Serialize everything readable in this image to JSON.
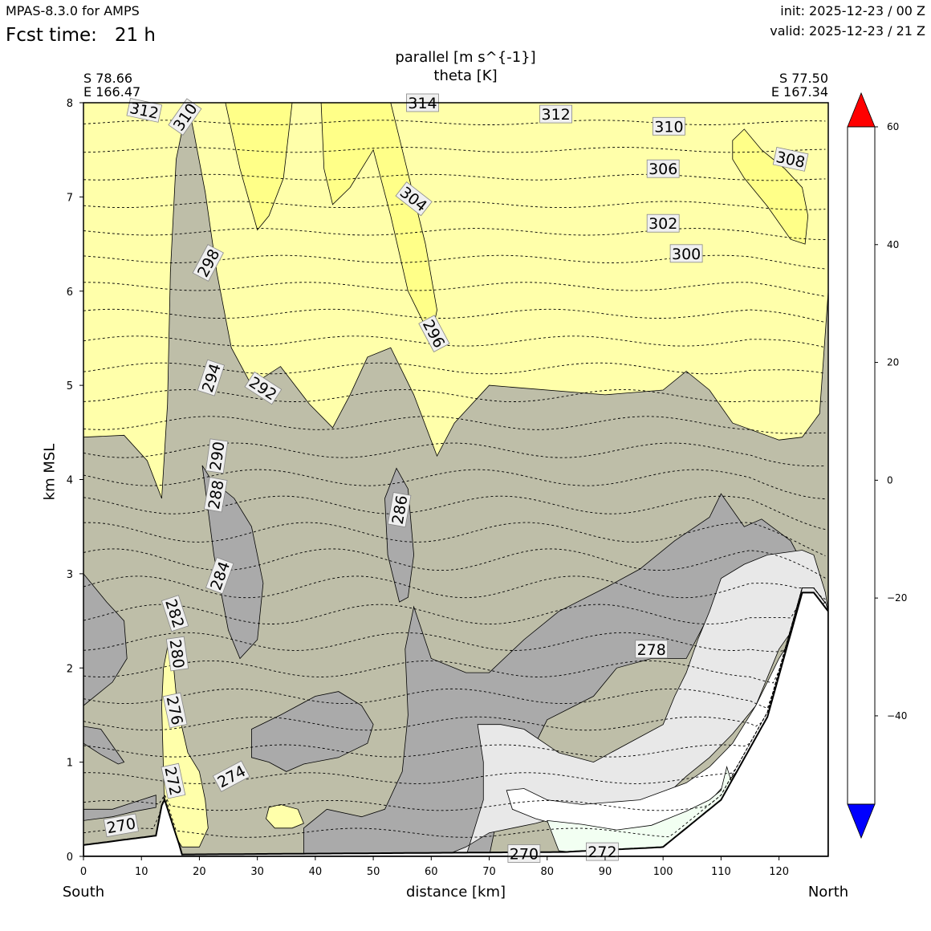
{
  "header": {
    "model": "MPAS-8.3.0 for AMPS",
    "fcst_label": "Fcst time:",
    "fcst_value": "21 h",
    "init": "init: 2025-12-23 / 00 Z",
    "valid": "valid: 2025-12-23 / 21 Z"
  },
  "chart_data": {
    "type": "contour",
    "title": "parallel [m s^{-1}]",
    "subtitle": "theta [K]",
    "xlabel": "distance [km]",
    "ylabel": "km MSL",
    "xlim": [
      0,
      128.5
    ],
    "ylim": [
      0,
      8
    ],
    "x_ticks": [
      0,
      10,
      20,
      30,
      40,
      50,
      60,
      70,
      80,
      90,
      100,
      110,
      120
    ],
    "y_ticks": [
      0,
      1,
      2,
      3,
      4,
      5,
      6,
      7,
      8
    ],
    "left_end": {
      "lat": "S 78.66",
      "lon": "E 166.47",
      "direction": "South"
    },
    "right_end": {
      "lat": "S 77.50",
      "lon": "E 167.34",
      "direction": "North"
    },
    "colorbar": {
      "levels": [
        -60,
        -50,
        -45,
        -40,
        -35,
        -30,
        -25,
        -20,
        -15,
        -10,
        -5,
        0,
        5,
        10,
        15,
        20,
        25,
        30,
        35,
        40,
        45,
        50,
        55,
        60
      ],
      "colors": [
        "#0000ff",
        "#0000ff",
        "#00cccc",
        "#00e066",
        "#22ff22",
        "#66ff66",
        "#aaffaa",
        "#ddffdd",
        "#f2fff2",
        "#ffffff",
        "#ffffff",
        "#ffffff",
        "#e8e8e8",
        "#aaaaaa",
        "#bebea8",
        "#ffffaa",
        "#ffff66",
        "#ffff22",
        "#ffee66",
        "#ff7070",
        "#ff0000",
        "#ff0000"
      ],
      "tick_values": [
        -40,
        -20,
        0,
        20,
        40,
        60
      ],
      "tick_labels": [
        "−40",
        "−20",
        "0",
        "20",
        "40",
        "60"
      ]
    },
    "theta_labels": [
      {
        "value": "312",
        "x": 10.5,
        "y": 7.92,
        "angle": 12
      },
      {
        "value": "310",
        "x": 17.5,
        "y": 7.85,
        "angle": -55
      },
      {
        "value": "314",
        "x": 58.5,
        "y": 8.0,
        "angle": 0
      },
      {
        "value": "312",
        "x": 81.5,
        "y": 7.88,
        "angle": 0
      },
      {
        "value": "310",
        "x": 101,
        "y": 7.75,
        "angle": 0
      },
      {
        "value": "308",
        "x": 122,
        "y": 7.4,
        "angle": 12
      },
      {
        "value": "306",
        "x": 100,
        "y": 7.3,
        "angle": 0
      },
      {
        "value": "304",
        "x": 57,
        "y": 6.98,
        "angle": 38
      },
      {
        "value": "302",
        "x": 100,
        "y": 6.72,
        "angle": 0
      },
      {
        "value": "300",
        "x": 104,
        "y": 6.4,
        "angle": 0
      },
      {
        "value": "298",
        "x": 21.5,
        "y": 6.3,
        "angle": -62
      },
      {
        "value": "296",
        "x": 60.5,
        "y": 5.55,
        "angle": 62
      },
      {
        "value": "294",
        "x": 22,
        "y": 5.08,
        "angle": -72
      },
      {
        "value": "292",
        "x": 31,
        "y": 4.97,
        "angle": 33
      },
      {
        "value": "290",
        "x": 23,
        "y": 4.25,
        "angle": -82
      },
      {
        "value": "288",
        "x": 22.8,
        "y": 3.84,
        "angle": -80
      },
      {
        "value": "286",
        "x": 54.5,
        "y": 3.68,
        "angle": -80
      },
      {
        "value": "284",
        "x": 23.5,
        "y": 2.98,
        "angle": -70
      },
      {
        "value": "282",
        "x": 15.8,
        "y": 2.58,
        "angle": 72
      },
      {
        "value": "280",
        "x": 16.2,
        "y": 2.15,
        "angle": 82
      },
      {
        "value": "278",
        "x": 98,
        "y": 2.2,
        "angle": 0
      },
      {
        "value": "276",
        "x": 15.8,
        "y": 1.55,
        "angle": 78
      },
      {
        "value": "274",
        "x": 25.5,
        "y": 0.85,
        "angle": -28
      },
      {
        "value": "272",
        "x": 15.5,
        "y": 0.8,
        "angle": 78
      },
      {
        "value": "270",
        "x": 6.5,
        "y": 0.33,
        "angle": -10
      },
      {
        "value": "270",
        "x": 76,
        "y": 0.03,
        "angle": 0
      },
      {
        "value": "272",
        "x": 89.5,
        "y": 0.05,
        "angle": 0
      }
    ],
    "regions": [
      {
        "color": "#ffffaa",
        "points": [
          [
            0,
            4.45
          ],
          [
            0,
            8
          ],
          [
            128.5,
            8
          ],
          [
            128.5,
            6.0
          ],
          [
            127,
            4.7
          ],
          [
            124,
            4.45
          ],
          [
            120,
            4.42
          ],
          [
            112,
            4.6
          ],
          [
            108,
            4.95
          ],
          [
            104,
            5.15
          ],
          [
            100,
            4.95
          ],
          [
            90,
            4.9
          ],
          [
            70,
            5.0
          ],
          [
            64,
            4.6
          ],
          [
            61,
            4.25
          ],
          [
            57,
            4.9
          ],
          [
            53,
            5.4
          ],
          [
            49,
            5.3
          ],
          [
            46,
            4.9
          ],
          [
            43,
            4.55
          ],
          [
            39,
            4.8
          ],
          [
            34,
            5.2
          ],
          [
            29,
            5.0
          ],
          [
            25.5,
            5.4
          ],
          [
            23,
            6.2
          ],
          [
            21,
            7.05
          ],
          [
            19,
            7.7
          ],
          [
            18,
            8
          ],
          [
            16,
            7.4
          ],
          [
            15,
            6.2
          ],
          [
            14.5,
            4.8
          ],
          [
            13.5,
            3.8
          ],
          [
            11,
            4.2
          ],
          [
            7,
            4.47
          ]
        ]
      },
      {
        "color": "#ffff88",
        "points": [
          [
            24.5,
            8
          ],
          [
            36,
            8
          ],
          [
            34.5,
            7.2
          ],
          [
            32,
            6.8
          ],
          [
            30,
            6.65
          ],
          [
            27,
            7.3
          ]
        ]
      },
      {
        "color": "#ffff88",
        "points": [
          [
            41,
            8
          ],
          [
            53,
            8
          ],
          [
            55,
            7.5
          ],
          [
            59,
            6.5
          ],
          [
            61,
            5.8
          ],
          [
            60,
            5.5
          ],
          [
            56,
            6.0
          ],
          [
            53,
            6.8
          ],
          [
            50,
            7.5
          ],
          [
            46,
            7.1
          ],
          [
            43,
            6.92
          ],
          [
            41.5,
            7.3
          ]
        ]
      },
      {
        "color": "#ffff88",
        "points": [
          [
            112,
            7.6
          ],
          [
            114,
            7.72
          ],
          [
            117,
            7.5
          ],
          [
            121,
            7.3
          ],
          [
            124,
            7.1
          ],
          [
            125,
            6.8
          ],
          [
            124.5,
            6.5
          ],
          [
            122,
            6.55
          ],
          [
            118,
            6.9
          ],
          [
            114,
            7.2
          ],
          [
            112,
            7.4
          ]
        ]
      },
      {
        "color": "#aaaaaa",
        "points": [
          [
            0,
            3.0
          ],
          [
            4,
            2.7
          ],
          [
            7,
            2.5
          ],
          [
            7.5,
            2.1
          ],
          [
            5,
            1.85
          ],
          [
            0,
            1.6
          ]
        ]
      },
      {
        "color": "#aaaaaa",
        "points": [
          [
            0,
            1.38
          ],
          [
            3,
            1.35
          ],
          [
            7,
            1.0
          ],
          [
            6,
            0.98
          ],
          [
            3,
            1.08
          ],
          [
            0,
            1.2
          ]
        ]
      },
      {
        "color": "#aaaaaa",
        "points": [
          [
            0,
            0.5
          ],
          [
            5,
            0.5
          ],
          [
            9,
            0.58
          ],
          [
            12.5,
            0.65
          ],
          [
            12.5,
            0.52
          ],
          [
            9,
            0.48
          ],
          [
            5,
            0.42
          ],
          [
            0,
            0.38
          ]
        ]
      },
      {
        "color": "#aaaaaa",
        "points": [
          [
            20.5,
            4.15
          ],
          [
            22.5,
            3.2
          ],
          [
            25,
            2.4
          ],
          [
            27,
            2.1
          ],
          [
            30,
            2.3
          ],
          [
            31,
            2.9
          ],
          [
            29,
            3.5
          ],
          [
            26,
            3.8
          ],
          [
            22,
            4.0
          ]
        ]
      },
      {
        "color": "#aaaaaa",
        "points": [
          [
            54,
            4.12
          ],
          [
            56,
            3.9
          ],
          [
            57,
            3.2
          ],
          [
            56,
            2.75
          ],
          [
            54.5,
            2.7
          ],
          [
            52.5,
            3.2
          ],
          [
            52,
            3.8
          ]
        ]
      },
      {
        "color": "#aaaaaa",
        "points": [
          [
            29,
            1.35
          ],
          [
            34,
            1.5
          ],
          [
            40,
            1.7
          ],
          [
            44,
            1.75
          ],
          [
            48,
            1.6
          ],
          [
            50,
            1.4
          ],
          [
            49,
            1.2
          ],
          [
            44,
            1.05
          ],
          [
            38,
            0.98
          ],
          [
            35,
            0.9
          ],
          [
            32,
            1.0
          ],
          [
            29,
            1.05
          ]
        ]
      },
      {
        "color": "#aaaaaa",
        "points": [
          [
            38,
            0.0
          ],
          [
            38,
            0.3
          ],
          [
            42,
            0.5
          ],
          [
            48,
            0.42
          ],
          [
            52,
            0.5
          ],
          [
            55,
            0.9
          ],
          [
            56,
            1.5
          ],
          [
            55.5,
            2.2
          ],
          [
            57,
            2.65
          ],
          [
            60,
            2.1
          ],
          [
            66,
            1.95
          ],
          [
            70,
            1.95
          ],
          [
            76,
            2.3
          ],
          [
            82,
            2.6
          ],
          [
            90,
            2.85
          ],
          [
            96,
            3.05
          ],
          [
            102,
            3.35
          ],
          [
            108,
            3.6
          ],
          [
            110,
            3.85
          ],
          [
            114,
            3.5
          ],
          [
            117,
            3.58
          ],
          [
            122,
            3.35
          ],
          [
            128.5,
            2.6
          ],
          [
            128,
            2.4
          ],
          [
            120,
            2.65
          ],
          [
            112,
            2.7
          ],
          [
            107,
            2.45
          ],
          [
            104,
            2.1
          ],
          [
            98,
            2.1
          ],
          [
            92,
            2.0
          ],
          [
            88,
            1.7
          ],
          [
            80,
            1.45
          ],
          [
            78,
            1.2
          ],
          [
            74,
            1.0
          ],
          [
            72,
            0.6
          ],
          [
            70,
            0.0
          ]
        ]
      },
      {
        "color": "#e8e8e8",
        "points": [
          [
            68,
            1.4
          ],
          [
            72,
            1.4
          ],
          [
            76,
            1.35
          ],
          [
            82,
            1.1
          ],
          [
            88,
            1.0
          ],
          [
            94,
            1.2
          ],
          [
            100,
            1.4
          ],
          [
            102,
            1.7
          ],
          [
            104,
            1.95
          ],
          [
            106,
            2.3
          ],
          [
            108,
            2.6
          ],
          [
            110,
            2.95
          ],
          [
            114,
            3.1
          ],
          [
            118,
            3.2
          ],
          [
            124,
            3.25
          ],
          [
            126,
            3.2
          ],
          [
            128,
            2.8
          ],
          [
            128.5,
            2.6
          ],
          [
            127,
            2.7
          ],
          [
            124,
            2.55
          ],
          [
            120,
            2.2
          ],
          [
            116,
            1.6
          ],
          [
            112,
            1.3
          ],
          [
            108,
            1.05
          ],
          [
            104,
            0.85
          ],
          [
            100,
            0.62
          ],
          [
            94,
            0.5
          ],
          [
            84,
            0.45
          ],
          [
            78,
            0.35
          ],
          [
            74,
            0.3
          ],
          [
            70,
            0.25
          ],
          [
            66,
            0.1
          ],
          [
            62,
            0.0
          ],
          [
            66,
            0.0
          ],
          [
            69,
            0.6
          ],
          [
            69,
            1.0
          ]
        ]
      },
      {
        "color": "#ffffff",
        "points": [
          [
            73,
            0.7
          ],
          [
            76,
            0.72
          ],
          [
            80,
            0.6
          ],
          [
            86,
            0.55
          ],
          [
            96,
            0.6
          ],
          [
            104,
            0.78
          ],
          [
            108,
            0.95
          ],
          [
            112,
            1.2
          ],
          [
            116,
            1.6
          ],
          [
            120,
            2.1
          ],
          [
            124,
            2.5
          ],
          [
            128,
            2.7
          ],
          [
            128.5,
            2.6
          ],
          [
            128,
            2.3
          ],
          [
            124,
            2.0
          ],
          [
            118,
            1.3
          ],
          [
            112,
            0.85
          ],
          [
            106,
            0.45
          ],
          [
            100,
            0.3
          ],
          [
            96,
            0.25
          ],
          [
            90,
            0.28
          ],
          [
            84,
            0.3
          ],
          [
            78,
            0.4
          ],
          [
            74,
            0.5
          ]
        ]
      },
      {
        "color": "#f2fff2",
        "points": [
          [
            80,
            0.38
          ],
          [
            86,
            0.34
          ],
          [
            92,
            0.28
          ],
          [
            98,
            0.33
          ],
          [
            104,
            0.48
          ],
          [
            108,
            0.6
          ],
          [
            110,
            0.7
          ],
          [
            111,
            0.95
          ],
          [
            112,
            0.75
          ],
          [
            110,
            0.4
          ],
          [
            106,
            0.2
          ],
          [
            100,
            0.1
          ],
          [
            96,
            0.06
          ],
          [
            90,
            0.04
          ],
          [
            85,
            0.04
          ],
          [
            82,
            0.06
          ]
        ]
      },
      {
        "color": "#ffffaa",
        "points": [
          [
            14.5,
            2.22
          ],
          [
            15.5,
            2.05
          ],
          [
            16,
            1.72
          ],
          [
            16.5,
            1.5
          ],
          [
            18,
            1.1
          ],
          [
            20,
            0.9
          ],
          [
            21,
            0.6
          ],
          [
            21.5,
            0.3
          ],
          [
            20,
            0.1
          ],
          [
            17,
            0.1
          ],
          [
            15,
            0.3
          ],
          [
            14,
            0.45
          ],
          [
            13.8,
            0.9
          ],
          [
            13.5,
            1.6
          ],
          [
            13.8,
            2.0
          ]
        ]
      },
      {
        "color": "#ffffaa",
        "points": [
          [
            32,
            0.52
          ],
          [
            34,
            0.55
          ],
          [
            37,
            0.5
          ],
          [
            38,
            0.35
          ],
          [
            36,
            0.3
          ],
          [
            33,
            0.3
          ],
          [
            31.5,
            0.4
          ]
        ]
      }
    ]
  }
}
